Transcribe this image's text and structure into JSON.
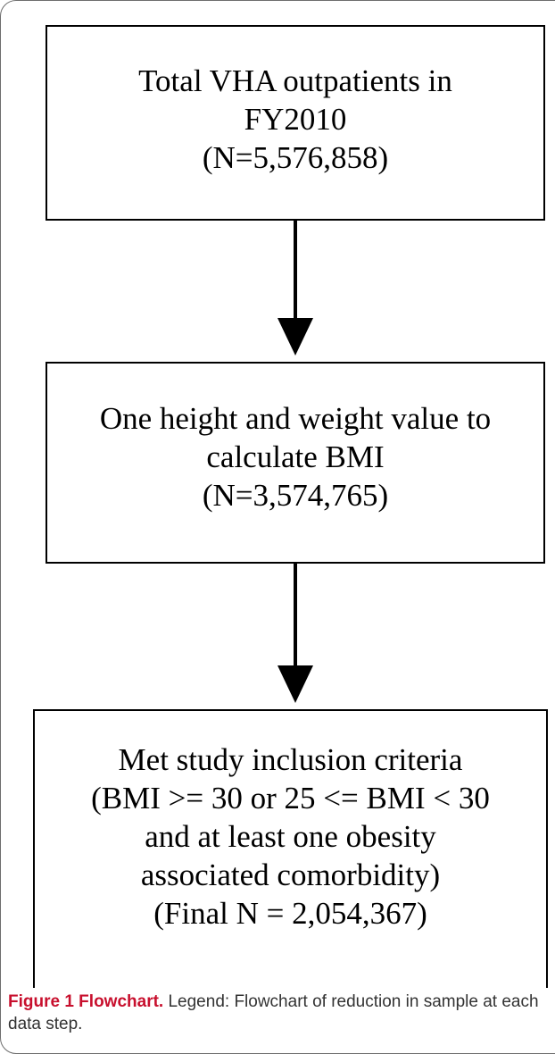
{
  "flowchart": {
    "box1": {
      "lines": [
        "Total VHA outpatients in",
        "FY2010",
        "(N=5,576,858)"
      ]
    },
    "box2": {
      "lines": [
        "One height and weight value to",
        "calculate BMI",
        "(N=3,574,765)"
      ]
    },
    "box3": {
      "lines": [
        "Met study inclusion criteria",
        "(BMI >= 30 or 25 <= BMI < 30",
        "and at least one obesity",
        "associated comorbidity)",
        "(Final N = 2,054,367)"
      ]
    }
  },
  "caption": {
    "label": "Figure 1 Flowchart.",
    "text": " Legend: Flowchart of reduction in sample at each data step."
  }
}
